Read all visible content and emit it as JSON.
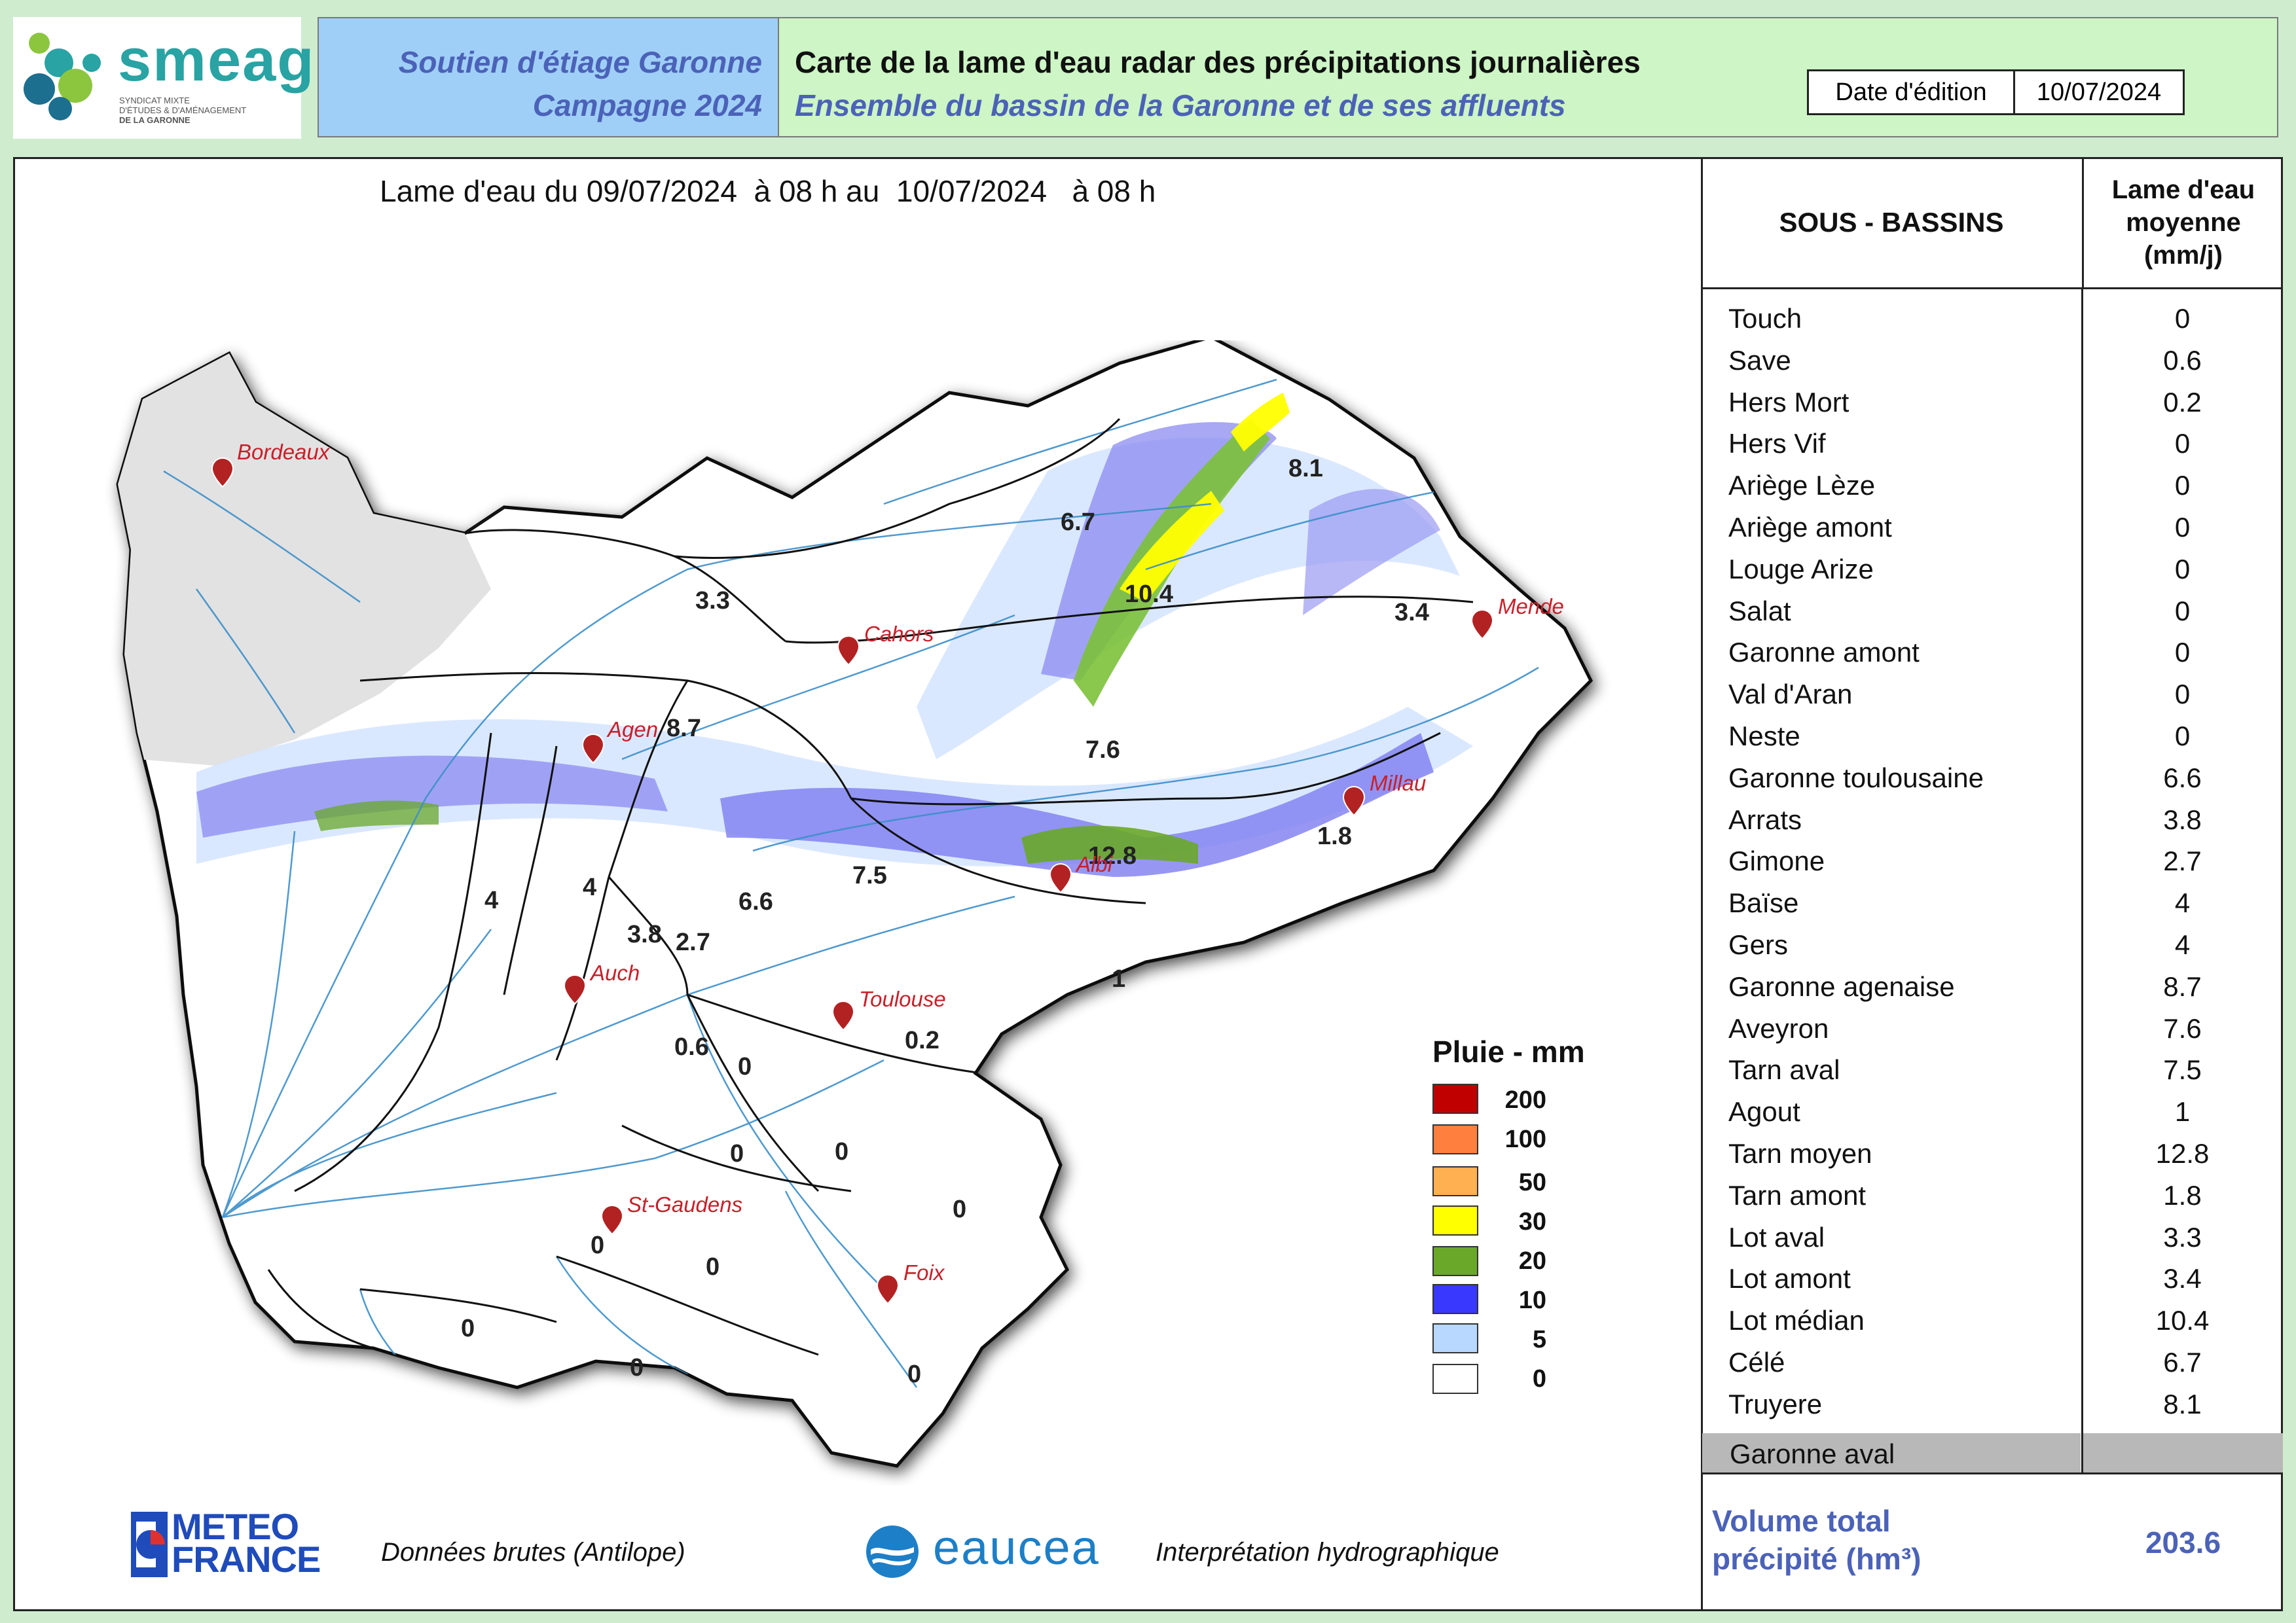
{
  "logo": {
    "name": "smeag",
    "subline1": "SYNDICAT MIXTE",
    "subline2": "D'ÉTUDES & D'AMÉNAGEMENT",
    "subline3": "DE LA GARONNE"
  },
  "header": {
    "campaign_line1": "Soutien d'étiage Garonne",
    "campaign_line2": "Campagne 2024",
    "title": "Carte de la lame d'eau radar des précipitations journalières",
    "subtitle": "Ensemble du bassin de la Garonne et de ses affluents",
    "date_label": "Date d'édition",
    "date_value": "10/07/2024"
  },
  "map": {
    "period": "Lame d'eau du 09/07/2024  à 08 h au  10/07/2024   à 08 h",
    "cities": [
      {
        "name": "Bordeaux"
      },
      {
        "name": "Cahors"
      },
      {
        "name": "Mende"
      },
      {
        "name": "Agen"
      },
      {
        "name": "Millau"
      },
      {
        "name": "Albi"
      },
      {
        "name": "Auch"
      },
      {
        "name": "Toulouse"
      },
      {
        "name": "St-Gaudens"
      },
      {
        "name": "Foix"
      }
    ],
    "basin_values": [
      "3.3",
      "6.7",
      "8.1",
      "10.4",
      "3.4",
      "8.7",
      "7.6",
      "12.8",
      "1.8",
      "7.5",
      "4",
      "4",
      "6.6",
      "3.8",
      "2.7",
      "1",
      "0.6",
      "0",
      "0.2",
      "0",
      "0",
      "0",
      "0",
      "0",
      "0",
      "0",
      "0"
    ]
  },
  "legend": {
    "title": "Pluie - mm",
    "items": [
      {
        "label": "200",
        "color": "#c00000"
      },
      {
        "label": "100",
        "color": "#ff7f3f"
      },
      {
        "label": "50",
        "color": "#ffb050"
      },
      {
        "label": "30",
        "color": "#ffff00"
      },
      {
        "label": "20",
        "color": "#6aa82a"
      },
      {
        "label": "10",
        "color": "#3838ff"
      },
      {
        "label": "5",
        "color": "#b8d8ff"
      },
      {
        "label": "0",
        "color": "#ffffff"
      }
    ]
  },
  "table": {
    "col1_header": "SOUS - BASSINS",
    "col2_header_line1": "Lame d'eau",
    "col2_header_line2": "moyenne",
    "col2_header_line3": "(mm/j)",
    "rows": [
      {
        "name": "Touch",
        "value": "0"
      },
      {
        "name": "Save",
        "value": "0.6"
      },
      {
        "name": "Hers Mort",
        "value": "0.2"
      },
      {
        "name": "Hers Vif",
        "value": "0"
      },
      {
        "name": "Ariège Lèze",
        "value": "0"
      },
      {
        "name": "Ariège amont",
        "value": "0"
      },
      {
        "name": "Louge Arize",
        "value": "0"
      },
      {
        "name": "Salat",
        "value": "0"
      },
      {
        "name": "Garonne amont",
        "value": "0"
      },
      {
        "name": "Val d'Aran",
        "value": "0"
      },
      {
        "name": "Neste",
        "value": "0"
      },
      {
        "name": "Garonne toulousaine",
        "value": "6.6"
      },
      {
        "name": "Arrats",
        "value": "3.8"
      },
      {
        "name": "Gimone",
        "value": "2.7"
      },
      {
        "name": "Baïse",
        "value": "4"
      },
      {
        "name": "Gers",
        "value": "4"
      },
      {
        "name": "Garonne agenaise",
        "value": "8.7"
      },
      {
        "name": "Aveyron",
        "value": "7.6"
      },
      {
        "name": "Tarn aval",
        "value": "7.5"
      },
      {
        "name": "Agout",
        "value": "1"
      },
      {
        "name": "Tarn moyen",
        "value": "12.8"
      },
      {
        "name": "Tarn amont",
        "value": "1.8"
      },
      {
        "name": "Lot aval",
        "value": "3.3"
      },
      {
        "name": "Lot amont",
        "value": "3.4"
      },
      {
        "name": "Lot médian",
        "value": "10.4"
      },
      {
        "name": "Célé",
        "value": "6.7"
      },
      {
        "name": "Truyere",
        "value": "8.1"
      }
    ],
    "garonne_aval": "Garonne aval",
    "volume_label_line1": "Volume total",
    "volume_label_line2": "précipité (hm³)",
    "volume_value": "203.6"
  },
  "footer": {
    "meteo_line1": "METEO",
    "meteo_line2": "FRANCE",
    "meteo_caption": "Données brutes (Antilope)",
    "eaucea_name": "eaucea",
    "eaucea_caption": "Interprétation hydrographique"
  },
  "colors": {
    "accent_blue": "#4b62b8",
    "header_green": "#cdf5c5",
    "header_blue": "#9fcff7",
    "city_red": "#c8202a"
  }
}
